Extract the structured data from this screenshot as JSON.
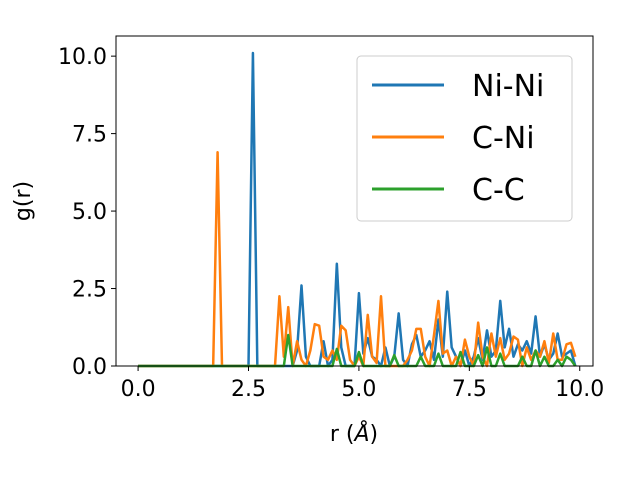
{
  "chart_data": {
    "type": "line",
    "xlabel_main": "r (",
    "xlabel_italic": "Å",
    "xlabel_end": ")",
    "ylabel": "g(r)",
    "xlim": [
      -0.5,
      10.3
    ],
    "ylim": [
      0,
      10.65
    ],
    "xticks": [
      0.0,
      2.5,
      5.0,
      7.5,
      10.0
    ],
    "xtick_labels": [
      "0.0",
      "2.5",
      "5.0",
      "7.5",
      "10.0"
    ],
    "yticks": [
      0.0,
      2.5,
      5.0,
      7.5,
      10.0
    ],
    "ytick_labels": [
      "0.0",
      "2.5",
      "5.0",
      "7.5",
      "10.0"
    ],
    "legend_position": "top-right",
    "x": [
      0.0,
      0.1,
      0.2,
      0.3,
      0.4,
      0.5,
      0.6,
      0.7,
      0.8,
      0.9,
      1.0,
      1.1,
      1.2,
      1.3,
      1.4,
      1.5,
      1.6,
      1.7,
      1.8,
      1.9,
      2.0,
      2.1,
      2.2,
      2.3,
      2.4,
      2.5,
      2.6,
      2.7,
      2.8,
      2.9,
      3.0,
      3.1,
      3.2,
      3.3,
      3.4,
      3.5,
      3.6,
      3.7,
      3.8,
      3.9,
      4.0,
      4.1,
      4.2,
      4.3,
      4.4,
      4.5,
      4.6,
      4.7,
      4.8,
      4.9,
      5.0,
      5.1,
      5.2,
      5.3,
      5.4,
      5.5,
      5.6,
      5.7,
      5.8,
      5.9,
      6.0,
      6.1,
      6.2,
      6.3,
      6.4,
      6.5,
      6.6,
      6.7,
      6.8,
      6.9,
      7.0,
      7.1,
      7.2,
      7.3,
      7.4,
      7.5,
      7.6,
      7.7,
      7.8,
      7.9,
      8.0,
      8.1,
      8.2,
      8.3,
      8.4,
      8.5,
      8.6,
      8.7,
      8.8,
      8.9,
      9.0,
      9.1,
      9.2,
      9.3,
      9.4,
      9.5,
      9.6,
      9.7,
      9.8,
      9.9
    ],
    "series": [
      {
        "name": "Ni-Ni",
        "color": "#1f77b4",
        "values": [
          0,
          0,
          0,
          0,
          0,
          0,
          0,
          0,
          0,
          0,
          0,
          0,
          0,
          0,
          0,
          0,
          0,
          0,
          0,
          0,
          0,
          0,
          0,
          0,
          0,
          0,
          10.1,
          0,
          0,
          0,
          0,
          0,
          0,
          0,
          0,
          0,
          0.5,
          2.6,
          0.3,
          0,
          0,
          0,
          0.8,
          0,
          0.2,
          3.3,
          0.6,
          0,
          0,
          0,
          2.35,
          0.4,
          0.9,
          0.3,
          0.2,
          0,
          0.6,
          0,
          0.3,
          1.7,
          0.2,
          0,
          0.7,
          1.0,
          0.3,
          0.5,
          0.8,
          0.2,
          1.5,
          0.3,
          2.4,
          0.6,
          0.3,
          0,
          0.5,
          0,
          0.3,
          0.9,
          0.2,
          1.15,
          0.3,
          0.5,
          2.1,
          0.6,
          1.2,
          0.3,
          0.7,
          0.5,
          0.8,
          0.4,
          1.6,
          0.3,
          0.7,
          0.2,
          0.4,
          1.05,
          0.3,
          0.4,
          0.5,
          0
        ]
      },
      {
        "name": "C-Ni",
        "color": "#ff7f0e",
        "values": [
          0,
          0,
          0,
          0,
          0,
          0,
          0,
          0,
          0,
          0,
          0,
          0,
          0,
          0,
          0,
          0,
          0,
          0,
          6.9,
          0,
          0,
          0,
          0,
          0,
          0,
          0,
          0,
          0,
          0,
          0,
          0,
          0,
          2.25,
          0.3,
          1.9,
          0,
          0.8,
          0.2,
          0,
          0.5,
          1.35,
          1.3,
          0.3,
          0.2,
          0.5,
          0.2,
          1.3,
          1.15,
          0.2,
          0,
          0.3,
          0,
          1.65,
          0.3,
          0.1,
          2.25,
          0,
          0,
          0,
          0,
          0,
          0.2,
          0.5,
          1.2,
          1.2,
          0.3,
          0,
          1.0,
          2.1,
          0.4,
          0.5,
          0,
          0.3,
          0,
          0.85,
          0.3,
          0,
          1.4,
          0.3,
          0,
          1.05,
          0.3,
          0.9,
          0.2,
          0.4,
          0.95,
          0.85,
          0,
          0.6,
          0.2,
          0.5,
          0.3,
          0.8,
          0.1,
          1.05,
          0.2,
          0.2,
          0.7,
          0.75,
          0.3
        ]
      },
      {
        "name": "C-C",
        "color": "#2ca02c",
        "values": [
          0,
          0,
          0,
          0,
          0,
          0,
          0,
          0,
          0,
          0,
          0,
          0,
          0,
          0,
          0,
          0,
          0,
          0,
          0,
          0,
          0,
          0,
          0,
          0,
          0,
          0,
          0,
          0,
          0,
          0,
          0,
          0,
          0,
          0,
          1.0,
          0,
          0,
          0,
          0,
          0,
          0,
          0,
          0,
          0,
          0,
          0.55,
          0,
          0,
          0,
          0,
          0.45,
          0,
          0,
          0,
          0,
          0,
          0,
          0,
          0.35,
          0,
          0,
          0,
          0,
          0,
          0.3,
          0,
          0,
          0,
          0.4,
          0,
          0,
          0,
          0,
          0.45,
          0,
          0,
          0,
          0.35,
          0,
          0.6,
          0,
          0,
          0.4,
          0,
          0,
          0,
          0,
          0.3,
          0,
          0,
          0.5,
          0,
          0.3,
          0,
          0,
          0.2,
          0,
          0.3,
          0.2,
          0
        ]
      }
    ]
  }
}
